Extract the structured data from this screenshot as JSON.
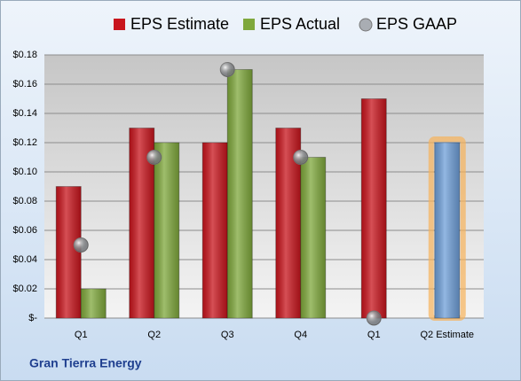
{
  "chart_data": {
    "type": "bar",
    "categories": [
      "Q1",
      "Q2",
      "Q3",
      "Q4",
      "Q1",
      "Q2 Estimate"
    ],
    "series": [
      {
        "name": "EPS Estimate",
        "color": "#c8151d",
        "kind": "bar",
        "values": [
          0.09,
          0.13,
          0.12,
          0.13,
          0.15,
          null
        ]
      },
      {
        "name": "EPS Actual",
        "color": "#7fa83c",
        "kind": "bar",
        "values": [
          0.02,
          0.12,
          0.17,
          0.11,
          null,
          null
        ]
      },
      {
        "name": "EPS GAAP",
        "color": "#a9adb3",
        "kind": "marker",
        "values": [
          0.05,
          0.11,
          0.17,
          0.11,
          0.0,
          null
        ]
      },
      {
        "color": "#6f9fd8",
        "kind": "bar",
        "values": [
          null,
          null,
          null,
          null,
          null,
          0.12
        ]
      }
    ],
    "ylim": [
      0,
      0.18
    ],
    "yticks": [
      {
        "value": 0,
        "label": "$-"
      },
      {
        "value": 0.02,
        "label": "$0.02"
      },
      {
        "value": 0.04,
        "label": "$0.04"
      },
      {
        "value": 0.06,
        "label": "$0.06"
      },
      {
        "value": 0.08,
        "label": "$0.08"
      },
      {
        "value": 0.1,
        "label": "$0.10"
      },
      {
        "value": 0.12,
        "label": "$0.12"
      },
      {
        "value": 0.14,
        "label": "$0.14"
      },
      {
        "value": 0.16,
        "label": "$0.16"
      },
      {
        "value": 0.18,
        "label": "$0.18"
      }
    ],
    "grid": true,
    "footer": "Gran Tierra Energy"
  }
}
